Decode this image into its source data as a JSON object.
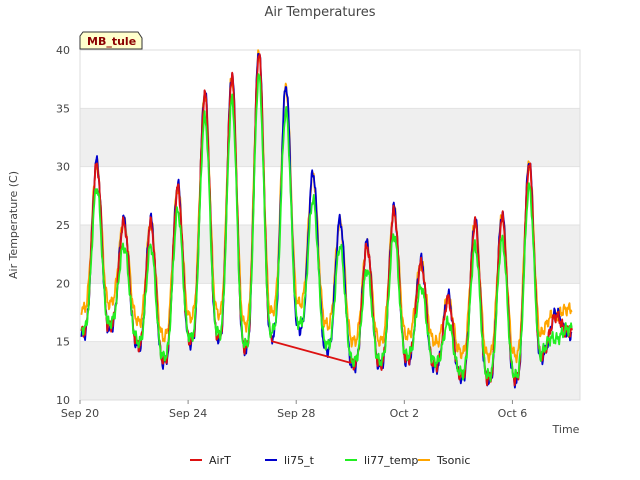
{
  "chart_data": {
    "type": "line",
    "title": "Air Temperatures",
    "xlabel": "Time",
    "ylabel": "Air Temperature (C)",
    "xlim_days": [
      0,
      18.5
    ],
    "ylim": [
      10,
      40
    ],
    "yticks": [
      10,
      15,
      20,
      25,
      30,
      35,
      40
    ],
    "xticks": [
      {
        "day": 0,
        "label": "Sep 20"
      },
      {
        "day": 4,
        "label": "Sep 24"
      },
      {
        "day": 8,
        "label": "Sep 28"
      },
      {
        "day": 12,
        "label": "Oct 2"
      },
      {
        "day": 16,
        "label": "Oct 6"
      }
    ],
    "grid": "horizontal-bands",
    "site_label": "MB_tule",
    "daily_extremes": {
      "days": [
        0.6,
        1.6,
        2.6,
        3.6,
        4.6,
        5.6,
        6.6,
        7.6,
        8.6,
        9.6,
        10.6,
        11.6,
        12.6,
        13.6,
        14.6,
        15.6,
        16.6,
        17.6
      ],
      "min_temp": [
        16.0,
        17.0,
        13.2,
        14.0,
        16.5,
        14.8,
        14.5,
        17.0,
        16.0,
        13.5,
        13.0,
        13.5,
        14.0,
        12.5,
        12.0,
        12.0,
        12.0,
        16.0
      ],
      "max_temp": [
        30.0,
        25.0,
        25.0,
        28.0,
        36.0,
        37.5,
        39.5,
        36.5,
        29.0,
        25.0,
        23.0,
        26.0,
        21.5,
        18.5,
        25.0,
        25.5,
        30.0,
        17.0
      ]
    },
    "series": [
      {
        "name": "AirT",
        "color": "#dd1111",
        "dmin": -0.2,
        "dmax": 0.2,
        "gap_interp": [
          7.1,
          10.0
        ],
        "z": 2
      },
      {
        "name": "li75_t",
        "color": "#0000cc",
        "dmin": -0.4,
        "dmax": 0.5,
        "z": 1
      },
      {
        "name": "li77_temp",
        "color": "#22ee22",
        "dmin": 0.1,
        "dmax": -1.8,
        "z": 3
      },
      {
        "name": "Tsonic",
        "color": "#ffa500",
        "dmin": 1.8,
        "dmax": 0.3,
        "z": 0
      }
    ],
    "legend": {
      "position": "bottom",
      "labels": [
        "AirT",
        "li75_t",
        "li77_temp",
        "Tsonic"
      ]
    }
  }
}
